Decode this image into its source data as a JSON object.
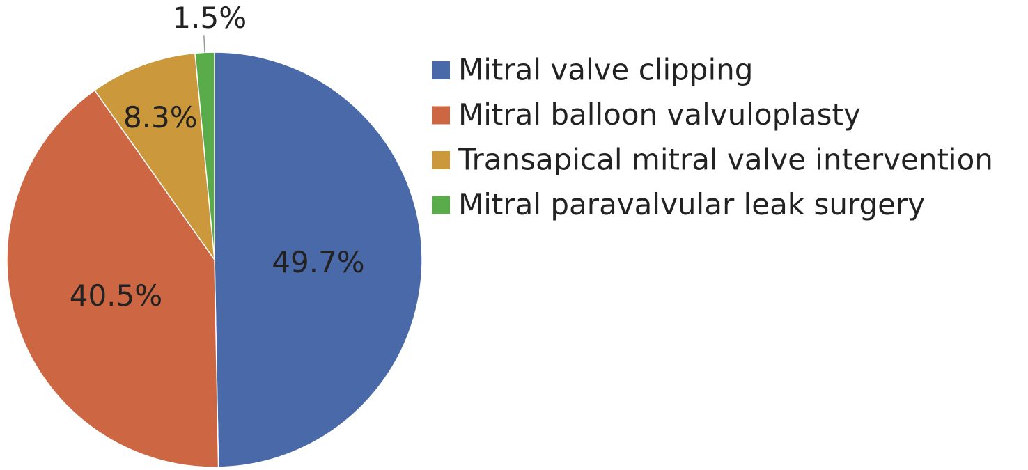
{
  "chart_data": {
    "type": "pie",
    "categories": [
      "Mitral valve clipping",
      "Mitral balloon valvuloplasty",
      "Transapical mitral valve intervention",
      "Mitral paravalvular leak surgery"
    ],
    "values": [
      49.7,
      40.5,
      8.3,
      1.5
    ],
    "value_labels": [
      "49.7%",
      "40.5%",
      "8.3%",
      "1.5%"
    ],
    "colors": [
      "#4a69a8",
      "#cd6642",
      "#cb983c",
      "#5aab4a"
    ],
    "legend": "right"
  }
}
